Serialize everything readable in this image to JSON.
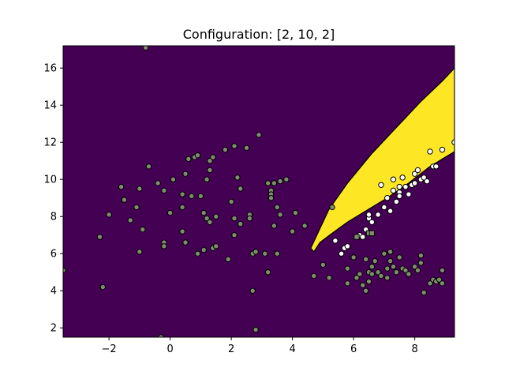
{
  "chart_data": {
    "type": "scatter",
    "title": "Configuration: [2, 10, 2]",
    "xlabel": "",
    "ylabel": "",
    "xlim": [
      -3.5,
      9.3
    ],
    "ylim": [
      1.5,
      17.2
    ],
    "x_ticks": [
      -2,
      0,
      2,
      4,
      6,
      8
    ],
    "y_ticks": [
      2,
      4,
      6,
      8,
      10,
      12,
      14,
      16
    ],
    "grid": false,
    "colors": {
      "background_region": "#440154",
      "decision_region": "#fde725",
      "boundary": "#000000",
      "class0_point": "#7f8c6e",
      "class1_point": "#ffffff"
    },
    "decision_region_polygon": [
      [
        4.7,
        6.1
      ],
      [
        4.9,
        6.6
      ],
      [
        5.3,
        7.1
      ],
      [
        5.8,
        7.7
      ],
      [
        6.4,
        8.3
      ],
      [
        7.1,
        9.0
      ],
      [
        7.8,
        9.8
      ],
      [
        8.5,
        10.7
      ],
      [
        9.3,
        11.5
      ],
      [
        9.3,
        16.0
      ],
      [
        8.9,
        15.3
      ],
      [
        8.2,
        14.2
      ],
      [
        7.4,
        12.8
      ],
      [
        6.6,
        11.4
      ],
      [
        5.8,
        9.8
      ],
      [
        5.2,
        8.4
      ],
      [
        4.8,
        7.0
      ],
      [
        4.6,
        6.3
      ]
    ],
    "series": [
      {
        "marker": "circle",
        "points": [
          [
            -0.8,
            17.1
          ],
          [
            -3.5,
            5.1
          ],
          [
            -2.3,
            6.9
          ],
          [
            -2.2,
            4.2
          ],
          [
            -2.0,
            8.1
          ],
          [
            -1.6,
            9.6
          ],
          [
            -1.5,
            8.9
          ],
          [
            -1.3,
            7.8
          ],
          [
            -1.1,
            8.5
          ],
          [
            -1.0,
            9.5
          ],
          [
            -1.0,
            6.1
          ],
          [
            -0.9,
            7.3
          ],
          [
            -0.7,
            10.7
          ],
          [
            -0.4,
            9.8
          ],
          [
            -0.3,
            1.5
          ],
          [
            -0.2,
            9.4
          ],
          [
            -0.2,
            6.6
          ],
          [
            -0.2,
            6.4
          ],
          [
            0.0,
            8.2
          ],
          [
            0.1,
            10.0
          ],
          [
            0.4,
            9.2
          ],
          [
            0.4,
            8.5
          ],
          [
            0.4,
            7.2
          ],
          [
            0.5,
            10.3
          ],
          [
            0.5,
            6.6
          ],
          [
            0.6,
            11.1
          ],
          [
            0.7,
            9.1
          ],
          [
            0.8,
            11.2
          ],
          [
            0.9,
            11.3
          ],
          [
            0.9,
            6.0
          ],
          [
            1.0,
            9.1
          ],
          [
            1.1,
            8.2
          ],
          [
            1.1,
            6.2
          ],
          [
            1.2,
            10.0
          ],
          [
            1.2,
            7.9
          ],
          [
            1.3,
            11.0
          ],
          [
            1.3,
            10.5
          ],
          [
            1.3,
            7.7
          ],
          [
            1.4,
            11.2
          ],
          [
            1.4,
            6.3
          ],
          [
            1.5,
            6.4
          ],
          [
            1.5,
            8.0
          ],
          [
            1.8,
            11.6
          ],
          [
            1.9,
            5.7
          ],
          [
            2.0,
            8.8
          ],
          [
            2.1,
            11.8
          ],
          [
            2.1,
            7.9
          ],
          [
            2.1,
            7.0
          ],
          [
            2.2,
            10.1
          ],
          [
            2.3,
            9.5
          ],
          [
            2.3,
            7.6
          ],
          [
            2.5,
            11.7
          ],
          [
            2.6,
            8.1
          ],
          [
            2.6,
            7.9
          ],
          [
            2.7,
            6.0
          ],
          [
            2.7,
            4.0
          ],
          [
            2.8,
            6.1
          ],
          [
            2.9,
            12.4
          ],
          [
            2.8,
            1.9
          ],
          [
            3.1,
            6.0
          ],
          [
            3.2,
            9.8
          ],
          [
            3.2,
            5.0
          ],
          [
            3.3,
            9.4
          ],
          [
            3.3,
            9.2
          ],
          [
            3.3,
            9.0
          ],
          [
            3.4,
            9.8
          ],
          [
            3.4,
            7.5
          ],
          [
            3.5,
            8.5
          ],
          [
            3.5,
            6.0
          ],
          [
            3.6,
            9.9
          ],
          [
            3.6,
            8.1
          ],
          [
            3.8,
            10.0
          ],
          [
            4.0,
            7.2
          ],
          [
            4.1,
            8.2
          ],
          [
            4.4,
            7.5
          ],
          [
            4.7,
            4.8
          ],
          [
            5.0,
            5.4
          ],
          [
            5.2,
            4.7
          ],
          [
            5.3,
            8.5
          ],
          [
            5.8,
            5.2
          ],
          [
            5.8,
            4.4
          ],
          [
            6.0,
            5.8
          ],
          [
            6.1,
            4.7
          ],
          [
            6.2,
            4.9
          ],
          [
            6.3,
            4.3
          ],
          [
            6.4,
            5.7
          ],
          [
            6.4,
            4.0
          ],
          [
            6.5,
            5.0
          ],
          [
            6.5,
            4.5
          ],
          [
            6.6,
            5.3
          ],
          [
            6.6,
            4.9
          ],
          [
            6.7,
            5.6
          ],
          [
            6.8,
            5.0
          ],
          [
            6.9,
            4.8
          ],
          [
            7.0,
            6.0
          ],
          [
            7.1,
            5.2
          ],
          [
            7.1,
            4.7
          ],
          [
            7.2,
            6.1
          ],
          [
            7.2,
            5.6
          ],
          [
            7.3,
            5.3
          ],
          [
            7.4,
            5.0
          ],
          [
            7.5,
            5.8
          ],
          [
            7.6,
            5.2
          ],
          [
            7.7,
            5.1
          ],
          [
            7.8,
            4.9
          ],
          [
            8.0,
            5.3
          ],
          [
            8.1,
            5.1
          ],
          [
            8.2,
            5.5
          ],
          [
            8.2,
            5.9
          ],
          [
            8.3,
            3.9
          ],
          [
            8.5,
            4.4
          ],
          [
            8.6,
            4.6
          ],
          [
            8.7,
            4.5
          ],
          [
            8.8,
            4.6
          ],
          [
            8.9,
            5.1
          ],
          [
            8.9,
            4.4
          ]
        ],
        "fill": "#7f8c6e"
      },
      {
        "marker": "circle",
        "points": [
          [
            5.4,
            6.7
          ],
          [
            5.6,
            6.0
          ],
          [
            5.7,
            6.3
          ],
          [
            5.8,
            6.4
          ],
          [
            6.2,
            7.0
          ],
          [
            6.3,
            6.9
          ],
          [
            6.4,
            7.3
          ],
          [
            6.5,
            7.9
          ],
          [
            6.5,
            8.1
          ],
          [
            6.6,
            7.7
          ],
          [
            6.8,
            8.1
          ],
          [
            6.9,
            9.7
          ],
          [
            7.0,
            8.5
          ],
          [
            7.1,
            9.0
          ],
          [
            7.2,
            8.3
          ],
          [
            7.3,
            10.0
          ],
          [
            7.3,
            9.4
          ],
          [
            7.4,
            8.8
          ],
          [
            7.5,
            9.6
          ],
          [
            7.5,
            9.3
          ],
          [
            7.5,
            9.1
          ],
          [
            7.6,
            10.1
          ],
          [
            7.7,
            9.6
          ],
          [
            7.8,
            9.2
          ],
          [
            7.9,
            9.7
          ],
          [
            8.0,
            9.8
          ],
          [
            8.0,
            10.3
          ],
          [
            8.1,
            10.5
          ],
          [
            8.2,
            10.0
          ],
          [
            8.3,
            10.1
          ],
          [
            8.4,
            9.9
          ],
          [
            8.5,
            11.5
          ],
          [
            8.6,
            10.7
          ],
          [
            8.7,
            10.7
          ],
          [
            8.9,
            11.6
          ],
          [
            9.3,
            12.0
          ]
        ],
        "fill": "#ffffff"
      },
      {
        "marker": "square",
        "points": [
          [
            6.1,
            6.9
          ],
          [
            6.5,
            7.1
          ],
          [
            6.6,
            7.1
          ]
        ],
        "fill": "#7f8c6e"
      }
    ]
  }
}
